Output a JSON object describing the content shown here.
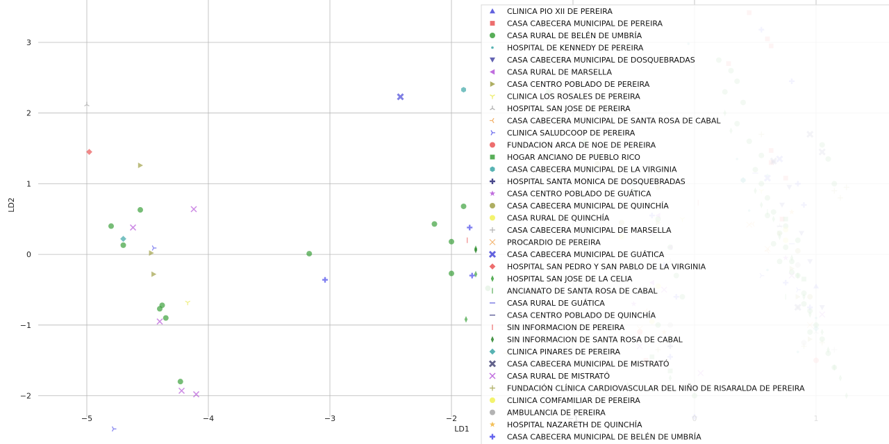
{
  "chart_data": {
    "type": "scatter",
    "title": "",
    "xlabel": "LD1",
    "ylabel": "LD2",
    "xlim": [
      -5.4,
      1.6
    ],
    "ylim": [
      -2.3,
      3.6
    ],
    "x_ticks": [
      -5,
      -4,
      -3,
      -2,
      -1,
      0,
      1
    ],
    "y_ticks": [
      -2,
      -1,
      0,
      1,
      2,
      3
    ],
    "x_tick_labels": [
      "−5",
      "−4",
      "−3",
      "−2",
      "−1",
      "0",
      "1"
    ],
    "y_tick_labels": [
      "−2",
      "−1",
      "0",
      "1",
      "2",
      "3"
    ],
    "grid": true,
    "legend_position": "upper-right",
    "series": [
      {
        "name": "CLINICA PIO XII DE PEREIRA",
        "marker": "triangle-up",
        "color": "#3b3bd6",
        "points": [
          [
            1.0,
            -0.45
          ]
        ]
      },
      {
        "name": "CASA CABECERA MUNICIPAL DE PEREIRA",
        "marker": "square",
        "color": "#e84a4a",
        "points": [
          [
            0.45,
            3.42
          ],
          [
            0.6,
            3.05
          ],
          [
            0.63,
            2.95
          ],
          [
            0.28,
            2.7
          ],
          [
            0.63,
            1.47
          ],
          [
            0.75,
            1.08
          ],
          [
            0.72,
            0.5
          ],
          [
            -0.4,
            -1.5
          ],
          [
            0.63,
            1.3
          ]
        ]
      },
      {
        "name": "CASA RURAL DE BELÉN DE UMBRÍA",
        "marker": "circle",
        "color": "#2e9a2e",
        "points": [
          [
            -4.8,
            0.4
          ],
          [
            -4.7,
            0.13
          ],
          [
            -4.56,
            0.63
          ],
          [
            -4.38,
            -0.72
          ],
          [
            -4.4,
            -0.77
          ],
          [
            -4.35,
            -0.9
          ],
          [
            -4.23,
            -1.8
          ],
          [
            -3.17,
            0.01
          ],
          [
            -2.14,
            0.43
          ],
          [
            -2.0,
            0.18
          ],
          [
            -2.0,
            -0.27
          ],
          [
            -1.9,
            0.68
          ],
          [
            -1.7,
            -0.48
          ],
          [
            0.2,
            2.75
          ],
          [
            0.3,
            2.6
          ],
          [
            0.35,
            2.45
          ],
          [
            0.25,
            2.3
          ],
          [
            0.4,
            2.15
          ],
          [
            0.35,
            1.85
          ],
          [
            0.45,
            1.6
          ],
          [
            0.55,
            1.4
          ],
          [
            0.5,
            1.2
          ],
          [
            0.55,
            1.0
          ],
          [
            0.6,
            0.8
          ],
          [
            0.65,
            0.6
          ],
          [
            0.7,
            0.3
          ],
          [
            0.75,
            0.1
          ],
          [
            0.8,
            -0.1
          ],
          [
            0.85,
            -0.3
          ],
          [
            0.9,
            -0.55
          ],
          [
            0.95,
            -0.8
          ],
          [
            1.0,
            -1.0
          ],
          [
            1.05,
            -1.2
          ],
          [
            1.1,
            -1.4
          ],
          [
            1.15,
            -1.6
          ],
          [
            1.05,
            1.55
          ],
          [
            1.1,
            1.35
          ],
          [
            1.15,
            1.0
          ],
          [
            -0.5,
            0.9
          ],
          [
            -0.3,
            0.5
          ],
          [
            -0.2,
            0.1
          ],
          [
            -0.15,
            -0.3
          ],
          [
            -0.1,
            -0.6
          ],
          [
            -0.3,
            -1.0
          ],
          [
            -0.2,
            -1.2
          ],
          [
            0.0,
            -2.0
          ],
          [
            0.65,
            0.15
          ],
          [
            0.7,
            -0.1
          ],
          [
            0.6,
            0.55
          ],
          [
            0.75,
            0.4
          ],
          [
            0.85,
            0.2
          ],
          [
            0.8,
            -0.25
          ],
          [
            0.9,
            -0.7
          ],
          [
            0.95,
            -1.1
          ],
          [
            -1.2,
            2.3
          ],
          [
            -1.1,
            1.9
          ],
          [
            -0.9,
            1.6
          ],
          [
            -0.8,
            1.4
          ]
        ]
      },
      {
        "name": "HOSPITAL DE KENNEDY DE PEREIRA",
        "marker": "point",
        "color": "#2ea0a0",
        "points": [
          [
            -0.05,
            2.98
          ],
          [
            0.35,
            1.35
          ],
          [
            0.6,
            1.12
          ],
          [
            0.45,
            0.62
          ],
          [
            0.6,
            -0.22
          ],
          [
            0.85,
            -1.38
          ],
          [
            1.0,
            -0.9
          ]
        ]
      },
      {
        "name": "CASA CABECERA MUNICIPAL DE DOSQUEBRADAS",
        "marker": "triangle-down",
        "color": "#3b3b9e",
        "points": [
          [
            0.65,
            1.3
          ],
          [
            0.78,
            0.95
          ],
          [
            0.72,
            0.7
          ],
          [
            0.88,
            0.3
          ],
          [
            0.95,
            -0.1
          ],
          [
            1.05,
            -0.75
          ]
        ]
      },
      {
        "name": "CASA RURAL DE MARSELLA",
        "marker": "triangle-left",
        "color": "#b04ad6",
        "points": [
          [
            -0.3,
            0.55
          ],
          [
            -0.2,
            0.1
          ],
          [
            -0.35,
            -0.4
          ]
        ]
      },
      {
        "name": "CASA CENTRO POBLADO DE PEREIRA",
        "marker": "triangle-right",
        "color": "#9a9a3b",
        "points": [
          [
            -4.56,
            1.26
          ],
          [
            -4.47,
            0.02
          ],
          [
            -4.45,
            -0.28
          ],
          [
            -0.3,
            0.45
          ],
          [
            0.7,
            0.3
          ],
          [
            0.8,
            -0.2
          ],
          [
            0.85,
            -0.6
          ],
          [
            0.95,
            -1.2
          ]
        ]
      },
      {
        "name": "CLINICA LOS ROSALES DE PEREIRA",
        "marker": "tri-down",
        "color": "#e8e84a",
        "points": [
          [
            -4.17,
            -0.68
          ],
          [
            -0.1,
            0.5
          ],
          [
            0.55,
            0.9
          ]
        ]
      },
      {
        "name": "HOSPITAL SAN JOSE DE PEREIRA",
        "marker": "tri-up",
        "color": "#a0a0a0",
        "points": [
          [
            -5.0,
            2.12
          ],
          [
            -0.2,
            -0.1
          ],
          [
            0.7,
            0.4
          ],
          [
            1.0,
            -1.1
          ]
        ]
      },
      {
        "name": "CASA CABECERA MUNICIPAL DE SANTA ROSA DE CABAL",
        "marker": "tri-left",
        "color": "#f0a04a",
        "points": [
          [
            -1.55,
            -1.4
          ],
          [
            0.48,
            0.43
          ],
          [
            0.6,
            0.05
          ],
          [
            -0.4,
            -0.8
          ]
        ]
      },
      {
        "name": "CLINICA SALUDCOOP DE PEREIRA",
        "marker": "tri-right",
        "color": "#4a4ae8",
        "points": [
          [
            -4.78,
            -2.47
          ],
          [
            -4.45,
            0.09
          ],
          [
            0.55,
            -0.3
          ],
          [
            0.85,
            -0.5
          ]
        ]
      },
      {
        "name": "FUNDACION ARCA DE NOE DE PEREIRA",
        "marker": "circle",
        "color": "#e84a4a",
        "points": [
          [
            -0.45,
            -1.1
          ],
          [
            1.0,
            -1.5
          ]
        ]
      },
      {
        "name": "HOGAR ANCIANO DE PUEBLO RICO",
        "marker": "square",
        "color": "#2e9a2e",
        "points": [
          [
            -0.35,
            -1.45
          ],
          [
            -0.2,
            -1.65
          ],
          [
            0.75,
            0.5
          ],
          [
            0.9,
            -0.35
          ]
        ]
      },
      {
        "name": "CASA CABECERA MUNICIPAL DE LA VIRGINIA",
        "marker": "hexagon",
        "color": "#2ea0a0",
        "points": [
          [
            -1.9,
            2.33
          ],
          [
            -0.5,
            1.0
          ],
          [
            0.4,
            1.05
          ]
        ]
      },
      {
        "name": "HOSPITAL SANTA MONICA DE DOSQUEBRADAS",
        "marker": "plus",
        "color": "#1a1a6e",
        "points": [
          [
            -1.5,
            1.2
          ],
          [
            -0.2,
            -1.3
          ]
        ]
      },
      {
        "name": "CASA CENTRO POBLADO DE GUÁTICA",
        "marker": "star",
        "color": "#b04ad6",
        "points": [
          [
            -0.5,
            -0.7
          ],
          [
            0.75,
            -0.05
          ]
        ]
      },
      {
        "name": "CASA CABECERA MUNICIPAL DE QUINCHÍA",
        "marker": "circle",
        "color": "#9a9a3b",
        "points": [
          [
            -0.8,
            1.28
          ],
          [
            -0.3,
            0.95
          ],
          [
            0.85,
            0.05
          ],
          [
            0.95,
            -0.6
          ],
          [
            -0.6,
            0.45
          ]
        ]
      },
      {
        "name": "CASA RURAL DE QUINCHÍA",
        "marker": "circle",
        "color": "#f0f04a",
        "points": [
          [
            -0.6,
            0.25
          ],
          [
            0.75,
            0.35
          ],
          [
            -0.3,
            -0.45
          ]
        ]
      },
      {
        "name": "CASA CABECERA MUNICIPAL DE MARSELLA",
        "marker": "plus-thin",
        "color": "#a0a0a0",
        "points": [
          [
            -0.45,
            -0.5
          ],
          [
            0.85,
            -0.75
          ],
          [
            1.15,
            -1.35
          ]
        ]
      },
      {
        "name": "PROCARDIO DE PEREIRA",
        "marker": "x-thin",
        "color": "#f0a04a",
        "points": [
          [
            0.45,
            0.42
          ],
          [
            0.6,
            0.08
          ],
          [
            -0.45,
            -1.05
          ],
          [
            0.95,
            -1.0
          ]
        ]
      },
      {
        "name": "CASA CABECERA MUNICIPAL DE GUÁTICA",
        "marker": "x-filled",
        "color": "#3b3bd6",
        "points": [
          [
            -2.42,
            2.23
          ],
          [
            0.7,
            1.35
          ],
          [
            0.6,
            1.08
          ]
        ]
      },
      {
        "name": "HOSPITAL SAN PEDRO Y SAN PABLO DE LA VIRGINIA",
        "marker": "diamond",
        "color": "#e84a4a",
        "points": [
          [
            -4.98,
            1.45
          ]
        ]
      },
      {
        "name": "HOSPITAL SAN JOSE DE LA CELIA",
        "marker": "thin-diamond",
        "color": "#2e9a2e",
        "points": [
          [
            -1.8,
            0.08
          ],
          [
            -1.88,
            -0.92
          ],
          [
            -1.8,
            -0.28
          ],
          [
            0.25,
            2.0
          ],
          [
            0.3,
            1.75
          ],
          [
            0.5,
            0.9
          ],
          [
            0.55,
            0.7
          ],
          [
            0.65,
            0.5
          ],
          [
            0.7,
            0.25
          ],
          [
            0.8,
            -0.05
          ],
          [
            0.85,
            -0.3
          ],
          [
            0.9,
            -0.6
          ],
          [
            0.95,
            -0.85
          ],
          [
            1.05,
            -1.1
          ],
          [
            1.1,
            -1.35
          ],
          [
            1.15,
            -1.6
          ],
          [
            1.2,
            -1.75
          ],
          [
            1.25,
            -2.0
          ],
          [
            -0.35,
            -1.9
          ],
          [
            -0.2,
            -1.75
          ]
        ]
      },
      {
        "name": "ANCIANATO DE SANTA ROSA DE CABAL",
        "marker": "vline",
        "color": "#2e9a2e",
        "points": [
          [
            0.6,
            0.6
          ],
          [
            0.75,
            -0.6
          ]
        ]
      },
      {
        "name": "CASA RURAL DE GUÁTICA",
        "marker": "hline",
        "color": "#3b3bd6",
        "points": [
          [
            0.5,
            1.15
          ],
          [
            0.8,
            0.15
          ]
        ]
      },
      {
        "name": "CASA CENTRO POBLADO DE QUINCHÍA",
        "marker": "hline",
        "color": "#1a1a6e",
        "points": [
          [
            0.7,
            0.4
          ],
          [
            -0.3,
            -0.2
          ]
        ]
      },
      {
        "name": "SIN INFORMACION DE PEREIRA",
        "marker": "vline",
        "color": "#e84a4a",
        "points": [
          [
            -1.87,
            0.2
          ],
          [
            0.03,
            0.73
          ]
        ]
      },
      {
        "name": "SIN INFORMACION DE SANTA ROSA DE CABAL",
        "marker": "thin-diamond",
        "color": "#1a7a1a",
        "points": [
          [
            -1.8,
            0.06
          ],
          [
            -1.25,
            -0.55
          ],
          [
            -0.55,
            -1.85
          ]
        ]
      },
      {
        "name": "CLINICA PINARES DE PEREIRA",
        "marker": "diamond",
        "color": "#2ea0a0",
        "points": [
          [
            -4.7,
            0.22
          ],
          [
            0.4,
            1.05
          ],
          [
            1.0,
            -1.05
          ]
        ]
      },
      {
        "name": "CASA CABECERA MUNICIPAL DE MISTRATÓ",
        "marker": "x-filled",
        "color": "#3b3b6e",
        "points": [
          [
            0.65,
            1.32
          ],
          [
            0.95,
            1.7
          ],
          [
            1.05,
            1.45
          ],
          [
            0.85,
            -0.75
          ]
        ]
      },
      {
        "name": "CASA RURAL DE MISTRATÓ",
        "marker": "x",
        "color": "#b04ad6",
        "points": [
          [
            -4.62,
            0.38
          ],
          [
            -4.12,
            0.64
          ],
          [
            -4.4,
            -0.95
          ],
          [
            -4.22,
            -1.93
          ],
          [
            -4.1,
            -1.98
          ],
          [
            -0.3,
            -1.55
          ],
          [
            0.05,
            -1.68
          ],
          [
            -0.35,
            0.3
          ],
          [
            -0.25,
            -0.5
          ],
          [
            -0.45,
            -1.3
          ],
          [
            0.8,
            -0.3
          ],
          [
            1.05,
            -0.85
          ]
        ]
      },
      {
        "name": "FUNDACIÓN CLÍNICA CARDIOVASCULAR DEL NIÑO DE RISARALDA DE PEREIRA",
        "marker": "plus-thin",
        "color": "#9a9a3b",
        "points": [
          [
            0.55,
            1.7
          ],
          [
            1.25,
            0.95
          ],
          [
            1.2,
            0.8
          ],
          [
            1.15,
            0.9
          ],
          [
            0.9,
            -1.3
          ],
          [
            1.05,
            -1.25
          ],
          [
            -0.3,
            -1.35
          ]
        ]
      },
      {
        "name": "CLINICA COMFAMILIAR DE PEREIRA",
        "marker": "circle",
        "color": "#f0f04a",
        "points": [
          [
            0.75,
            0.2
          ],
          [
            -0.35,
            -0.95
          ]
        ]
      },
      {
        "name": "AMBULANCIA DE PEREIRA",
        "marker": "circle",
        "color": "#a0a0a0",
        "points": [
          [
            0.85,
            -0.15
          ],
          [
            -0.2,
            -1.0
          ],
          [
            0.9,
            -1.25
          ]
        ]
      },
      {
        "name": "HOSPITAL NAZARETH DE QUINCHÍA",
        "marker": "star",
        "color": "#f0b030",
        "points": [
          [
            0.8,
            0.6
          ],
          [
            -0.25,
            -1.1
          ]
        ]
      },
      {
        "name": "CASA CABECERA MUNICIPAL DE BELÉN DE UMBRÍA",
        "marker": "plus",
        "color": "#3b3be8",
        "points": [
          [
            -3.04,
            -0.36
          ],
          [
            -1.85,
            0.38
          ],
          [
            -1.83,
            -0.3
          ],
          [
            0.55,
            3.18
          ],
          [
            0.8,
            2.45
          ],
          [
            0.85,
            1.0
          ],
          [
            0.9,
            0.7
          ],
          [
            0.75,
            -0.4
          ],
          [
            0.95,
            -0.75
          ],
          [
            0.0,
            -2.3
          ],
          [
            -0.2,
            -1.45
          ],
          [
            -0.35,
            0.55
          ],
          [
            -0.25,
            -0.15
          ],
          [
            -0.15,
            -0.6
          ]
        ]
      }
    ]
  }
}
